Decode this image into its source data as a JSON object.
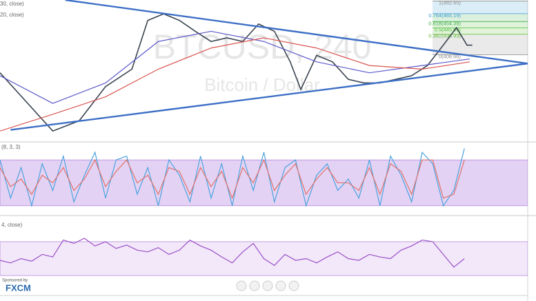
{
  "chart_data": [
    {
      "type": "line",
      "title": "BTCUSD, 240",
      "subtitle": "Bitcoin / Dollar",
      "indicator_labels": [
        "30, close)",
        "20, close)"
      ],
      "xlim": [
        0,
        100
      ],
      "ylim": [
        290,
        484
      ],
      "series": [
        {
          "color": "#3a4450",
          "x": [
            0,
            10,
            15,
            20,
            25,
            28,
            31,
            34,
            37,
            40,
            43,
            46,
            49,
            52,
            55,
            57,
            60,
            63,
            66,
            69,
            72,
            75,
            78,
            81,
            84,
            86.5,
            88.5,
            89.5
          ],
          "values": [
            384,
            304,
            318,
            365,
            389,
            456,
            465,
            456,
            441,
            427,
            432,
            427,
            451,
            441,
            399,
            361,
            408,
            399,
            375,
            370,
            370,
            375,
            380,
            394,
            422,
            446,
            422,
            422
          ]
        },
        {
          "color": "#5a57c8",
          "x": [
            0,
            10,
            20,
            30,
            40,
            50,
            60,
            70,
            80,
            89
          ],
          "values": [
            380,
            342,
            370,
            427,
            441,
            427,
            399,
            384,
            394,
            403
          ]
        },
        {
          "color": "#d9534f",
          "x": [
            0,
            10,
            20,
            30,
            40,
            50,
            60,
            70,
            80,
            89
          ],
          "values": [
            304,
            327,
            351,
            389,
            418,
            432,
            418,
            394,
            389,
            399
          ]
        }
      ],
      "trendlines": [
        {
          "color": "#3d6fc6",
          "x": [
            12.4,
            100
          ],
          "values": [
            484,
            396.7
          ]
        },
        {
          "color": "#3d6fc6",
          "x": [
            2,
            100
          ],
          "values": [
            305.6,
            396.7
          ]
        }
      ],
      "fib_levels": [
        {
          "value": 482.65,
          "label": "1(482.65)",
          "color": "#8a8a8a"
        },
        {
          "value": 465.19,
          "label": "0.764(465.19)",
          "color": "#3a9bd5"
        },
        {
          "value": 454.39,
          "label": "0.618(454.39)",
          "color": "#3fae49"
        },
        {
          "value": 445.66,
          "label": "0.5(445.66)",
          "color": "#4cbf3a"
        },
        {
          "value": 436.93,
          "label": "0.382(436.93)",
          "color": "#5dbb30"
        },
        {
          "value": 408.66,
          "label": "0(408.66)",
          "color": "#8a8a8a"
        }
      ]
    },
    {
      "type": "line",
      "title": "(8, 3, 3)",
      "xlim": [
        0,
        100
      ],
      "ylim": [
        8,
        100
      ],
      "band": [
        20,
        80
      ],
      "x": [
        0,
        2,
        4,
        6,
        8,
        10,
        12,
        14,
        16,
        18,
        20,
        22,
        24,
        26,
        28,
        30,
        32,
        34,
        36,
        38,
        40,
        42,
        44,
        46,
        48,
        50,
        52,
        54,
        56,
        58,
        60,
        62,
        64,
        66,
        68,
        70,
        72,
        74,
        76,
        78,
        80,
        82,
        84,
        86,
        88
      ],
      "series": [
        {
          "color": "#4aa3df",
          "values": [
            80,
            30,
            70,
            20,
            75,
            40,
            85,
            25,
            60,
            90,
            30,
            80,
            85,
            35,
            70,
            20,
            80,
            60,
            25,
            85,
            30,
            75,
            20,
            85,
            40,
            90,
            25,
            70,
            80,
            20,
            60,
            75,
            40,
            55,
            30,
            80,
            20,
            85,
            60,
            25,
            90,
            75,
            20,
            40,
            95
          ]
        },
        {
          "color": "#e0726a",
          "values": [
            70,
            45,
            55,
            35,
            60,
            50,
            70,
            40,
            55,
            80,
            45,
            65,
            80,
            50,
            60,
            35,
            70,
            65,
            35,
            70,
            45,
            65,
            30,
            70,
            50,
            80,
            40,
            60,
            75,
            35,
            55,
            70,
            50,
            50,
            40,
            70,
            35,
            75,
            65,
            35,
            80,
            80,
            30,
            35,
            80
          ]
        }
      ]
    },
    {
      "type": "line",
      "title": "4, close)",
      "xlim": [
        0,
        100
      ],
      "ylim": [
        0,
        100
      ],
      "band": [
        30,
        70
      ],
      "x": [
        0,
        2,
        4,
        6,
        8,
        10,
        12,
        14,
        16,
        18,
        20,
        22,
        24,
        26,
        28,
        30,
        32,
        34,
        36,
        38,
        40,
        42,
        44,
        46,
        48,
        50,
        52,
        54,
        56,
        58,
        60,
        62,
        64,
        66,
        68,
        70,
        72,
        74,
        76,
        78,
        80,
        82,
        84,
        86,
        88
      ],
      "series": [
        {
          "color": "#9b4fc8",
          "values": [
            48,
            45,
            50,
            47,
            55,
            52,
            72,
            68,
            74,
            65,
            70,
            62,
            66,
            60,
            58,
            63,
            55,
            60,
            72,
            65,
            60,
            52,
            45,
            58,
            68,
            50,
            42,
            55,
            48,
            50,
            45,
            52,
            58,
            50,
            48,
            55,
            52,
            50,
            60,
            65,
            72,
            70,
            55,
            40,
            50
          ]
        }
      ]
    },
    {
      "type": "badge",
      "sponsor": "Sponsored by",
      "brand": "FXCM"
    }
  ]
}
